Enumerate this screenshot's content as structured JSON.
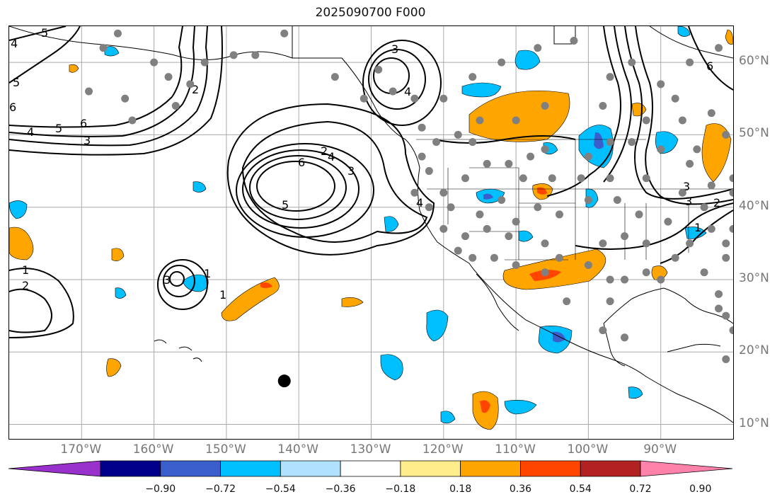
{
  "title": "2025090700 F000",
  "map": {
    "projection": "PlateCarree",
    "lon_range": [
      -180,
      -80
    ],
    "lat_range": [
      8,
      65
    ],
    "latitude_labels": [
      {
        "lat": 60,
        "text": "60°N"
      },
      {
        "lat": 50,
        "text": "50°N"
      },
      {
        "lat": 40,
        "text": "40°N"
      },
      {
        "lat": 30,
        "text": "30°N"
      },
      {
        "lat": 20,
        "text": "20°N"
      },
      {
        "lat": 10,
        "text": "10°N"
      }
    ],
    "longitude_labels": [
      {
        "lon": -170,
        "text": "170°W"
      },
      {
        "lon": -160,
        "text": "160°W"
      },
      {
        "lon": -150,
        "text": "150°W"
      },
      {
        "lon": -140,
        "text": "140°W"
      },
      {
        "lon": -130,
        "text": "130°W"
      },
      {
        "lon": -120,
        "text": "120°W"
      },
      {
        "lon": -110,
        "text": "110°W"
      },
      {
        "lon": -100,
        "text": "100°W"
      },
      {
        "lon": -90,
        "text": "90°W"
      }
    ],
    "gridlines": true,
    "black_marker": {
      "lon": -142,
      "lat": 16
    },
    "station_color": "#808080",
    "contour_color": "#000000",
    "contour_labels": [
      "1",
      "2",
      "3",
      "4",
      "5",
      "6"
    ]
  },
  "colorbar": {
    "ticks": [
      "−0.90",
      "−0.72",
      "−0.54",
      "−0.36",
      "−0.18",
      "0.18",
      "0.36",
      "0.54",
      "0.72",
      "0.90"
    ],
    "colors": [
      "#9932cc",
      "#00008b",
      "#3a5fcd",
      "#00bfff",
      "#b0e2ff",
      "#ffffff",
      "#ffec8b",
      "#ffa500",
      "#ff4500",
      "#b22222",
      "#ff82ab"
    ],
    "extend": "both"
  }
}
